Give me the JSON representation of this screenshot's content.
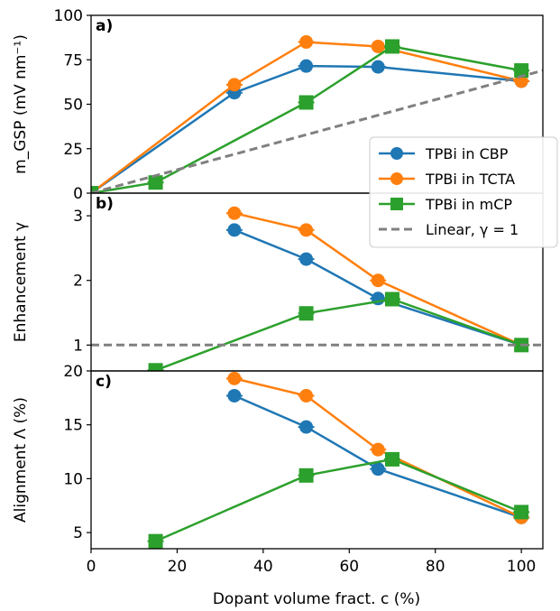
{
  "chart_data": {
    "type": "line",
    "shared_x": {
      "xlabel": "Dopant volume fract. c (%)",
      "xlim": [
        0,
        105
      ],
      "xticks": [
        0,
        20,
        40,
        60,
        80,
        100
      ]
    },
    "colors": {
      "cbp": "#1f77b4",
      "tcta": "#ff7f0e",
      "mcp": "#2ca02c",
      "linear": "#808080"
    },
    "legend": {
      "placement": "right, spanning panels a and b",
      "entries": [
        {
          "key": "cbp",
          "label": "TPBi in CBP",
          "marker": "circle"
        },
        {
          "key": "tcta",
          "label": "TPBi in TCTA",
          "marker": "circle"
        },
        {
          "key": "mcp",
          "label": "TPBi in mCP",
          "marker": "square"
        },
        {
          "key": "linear",
          "label": "Linear, γ = 1",
          "marker": "dashed"
        }
      ]
    },
    "panels": [
      {
        "letter": "a)",
        "ylabel": "m_GSP (mV nm⁻¹)",
        "ylim": [
          0,
          100
        ],
        "yticks": [
          0,
          25,
          50,
          75,
          100
        ],
        "series": [
          {
            "key": "cbp",
            "x": [
              0,
              33.3,
              50,
              66.7,
              100
            ],
            "y": [
              0,
              56.5,
              71.5,
              71,
              63
            ]
          },
          {
            "key": "tcta",
            "x": [
              0,
              33.3,
              50,
              66.7,
              100
            ],
            "y": [
              0,
              61,
              85,
              82.5,
              63
            ]
          },
          {
            "key": "mcp",
            "x": [
              0,
              15,
              50,
              70,
              100
            ],
            "y": [
              0,
              6,
              51,
              82.5,
              69
            ]
          },
          {
            "key": "linear",
            "x": [
              0,
              105
            ],
            "y": [
              0,
              69
            ]
          }
        ]
      },
      {
        "letter": "b)",
        "ylabel": "Enhancement γ",
        "ylim": [
          0.6,
          3.35
        ],
        "yticks": [
          1,
          2,
          3
        ],
        "series": [
          {
            "key": "cbp",
            "x": [
              33.3,
              50,
              66.7,
              100
            ],
            "y": [
              2.78,
              2.33,
              1.72,
              1.0
            ]
          },
          {
            "key": "tcta",
            "x": [
              33.3,
              50,
              66.7,
              100
            ],
            "y": [
              3.04,
              2.78,
              2.0,
              1.0
            ]
          },
          {
            "key": "mcp",
            "x": [
              15,
              50,
              70,
              100
            ],
            "y": [
              0.61,
              1.49,
              1.71,
              1.0
            ]
          },
          {
            "key": "linear",
            "x": [
              0,
              105
            ],
            "y": [
              1,
              1
            ]
          }
        ]
      },
      {
        "letter": "c)",
        "ylabel": "Alignment Λ (%)",
        "ylim": [
          3.5,
          20
        ],
        "yticks": [
          5,
          10,
          15,
          20
        ],
        "series": [
          {
            "key": "cbp",
            "x": [
              33.3,
              50,
              66.7,
              100
            ],
            "y": [
              17.7,
              14.8,
              10.9,
              6.4
            ]
          },
          {
            "key": "tcta",
            "x": [
              33.3,
              50,
              66.7,
              100
            ],
            "y": [
              19.3,
              17.7,
              12.7,
              6.4
            ]
          },
          {
            "key": "mcp",
            "x": [
              15,
              50,
              70,
              100
            ],
            "y": [
              4.2,
              10.3,
              11.8,
              6.9
            ]
          }
        ]
      }
    ]
  }
}
